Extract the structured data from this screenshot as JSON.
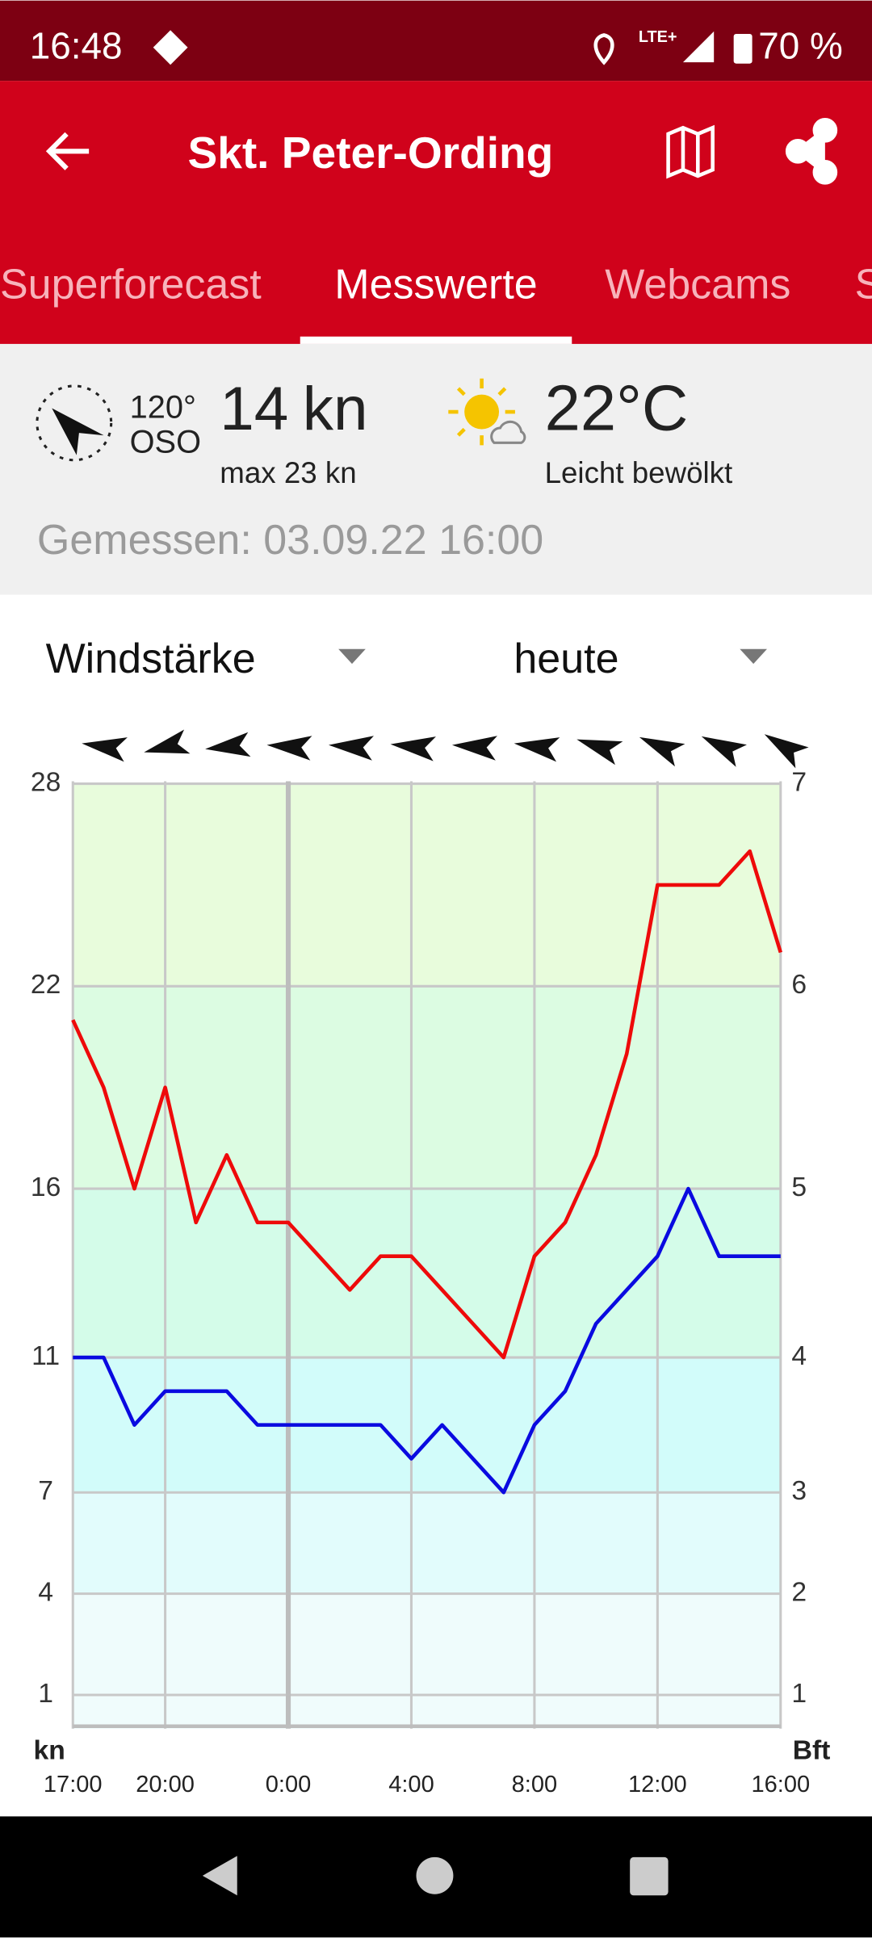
{
  "status_bar": {
    "time": "16:48",
    "network": "LTE+",
    "battery": "70 %"
  },
  "app_bar": {
    "title": "Skt. Peter-Ording"
  },
  "tabs": [
    "Superforecast",
    "Messwerte",
    "Webcams",
    "S"
  ],
  "current": {
    "wind_direction": "120°",
    "wind_direction_name": "OSO",
    "wind_speed": "14",
    "wind_unit": "kn",
    "wind_max": "max 23 kn",
    "temperature": "22°C",
    "weather": "Leicht bewölkt",
    "measured": "Gemessen: 03.09.22 16:00"
  },
  "selectors": {
    "parameter": "Windstärke",
    "period": "heute"
  },
  "chart_data": {
    "type": "line",
    "y_label": "kn",
    "y2_label": "Bft",
    "categories": [
      "17:00",
      null,
      null,
      "20:00",
      null,
      null,
      null,
      "0:00",
      null,
      null,
      null,
      "4:00",
      null,
      null,
      null,
      "8:00",
      null,
      null,
      null,
      "12:00",
      null,
      null,
      null,
      "16:00"
    ],
    "series": [
      {
        "color": "#ee0a0a",
        "values": [
          21,
          19,
          16,
          19,
          15,
          17,
          15,
          15,
          14,
          13,
          14,
          14,
          13,
          12,
          11,
          14,
          15,
          17,
          20,
          25,
          25,
          25,
          26,
          23
        ]
      },
      {
        "color": "#0a0ae0",
        "values": [
          11,
          11,
          9,
          10,
          10,
          10,
          9,
          9,
          9,
          9,
          9,
          8,
          9,
          8,
          7,
          9,
          10,
          12,
          13,
          14,
          16,
          14,
          14,
          14
        ]
      }
    ],
    "ylim": [
      0,
      28
    ],
    "yticks": [
      28,
      22,
      16,
      11,
      7,
      4,
      1
    ],
    "y2ticks": [
      7,
      6,
      5,
      4,
      3,
      2,
      1
    ],
    "grid": true
  }
}
